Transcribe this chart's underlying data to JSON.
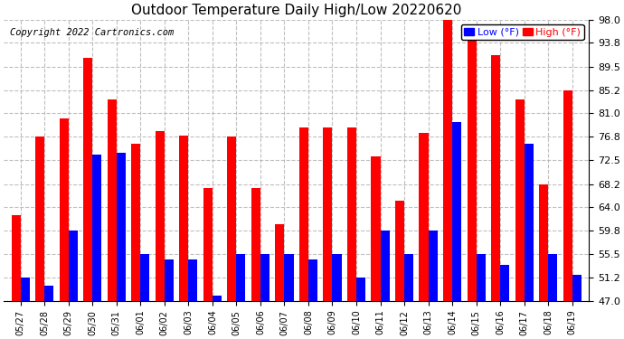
{
  "title": "Outdoor Temperature Daily High/Low 20220620",
  "copyright": "Copyright 2022 Cartronics.com",
  "legend_low": "Low (°F)",
  "legend_high": "High (°F)",
  "dates": [
    "05/27",
    "05/28",
    "05/29",
    "05/30",
    "05/31",
    "06/01",
    "06/02",
    "06/03",
    "06/04",
    "06/05",
    "06/06",
    "06/07",
    "06/08",
    "06/09",
    "06/10",
    "06/11",
    "06/12",
    "06/13",
    "06/14",
    "06/15",
    "06/16",
    "06/17",
    "06/18",
    "06/19"
  ],
  "highs": [
    62.5,
    76.8,
    80.1,
    91.0,
    83.5,
    75.5,
    77.8,
    77.0,
    67.5,
    76.8,
    67.5,
    61.0,
    78.5,
    78.5,
    78.5,
    73.2,
    65.2,
    77.5,
    98.0,
    95.0,
    91.5,
    83.5,
    68.2,
    85.2
  ],
  "lows": [
    51.2,
    49.8,
    59.8,
    73.5,
    73.8,
    55.5,
    54.5,
    54.5,
    48.0,
    55.5,
    55.5,
    55.5,
    54.5,
    55.5,
    51.2,
    59.8,
    55.5,
    59.8,
    79.5,
    55.5,
    53.5,
    75.5,
    55.5,
    51.8
  ],
  "bar_color_high": "#ff0000",
  "bar_color_low": "#0000ff",
  "background_color": "#ffffff",
  "grid_color": "#b0b0b0",
  "ylim_min": 47.0,
  "ylim_max": 98.0,
  "yticks": [
    47.0,
    51.2,
    55.5,
    59.8,
    64.0,
    68.2,
    72.5,
    76.8,
    81.0,
    85.2,
    89.5,
    93.8,
    98.0
  ],
  "bar_width": 0.38,
  "title_fontsize": 11,
  "copyright_fontsize": 7.5
}
